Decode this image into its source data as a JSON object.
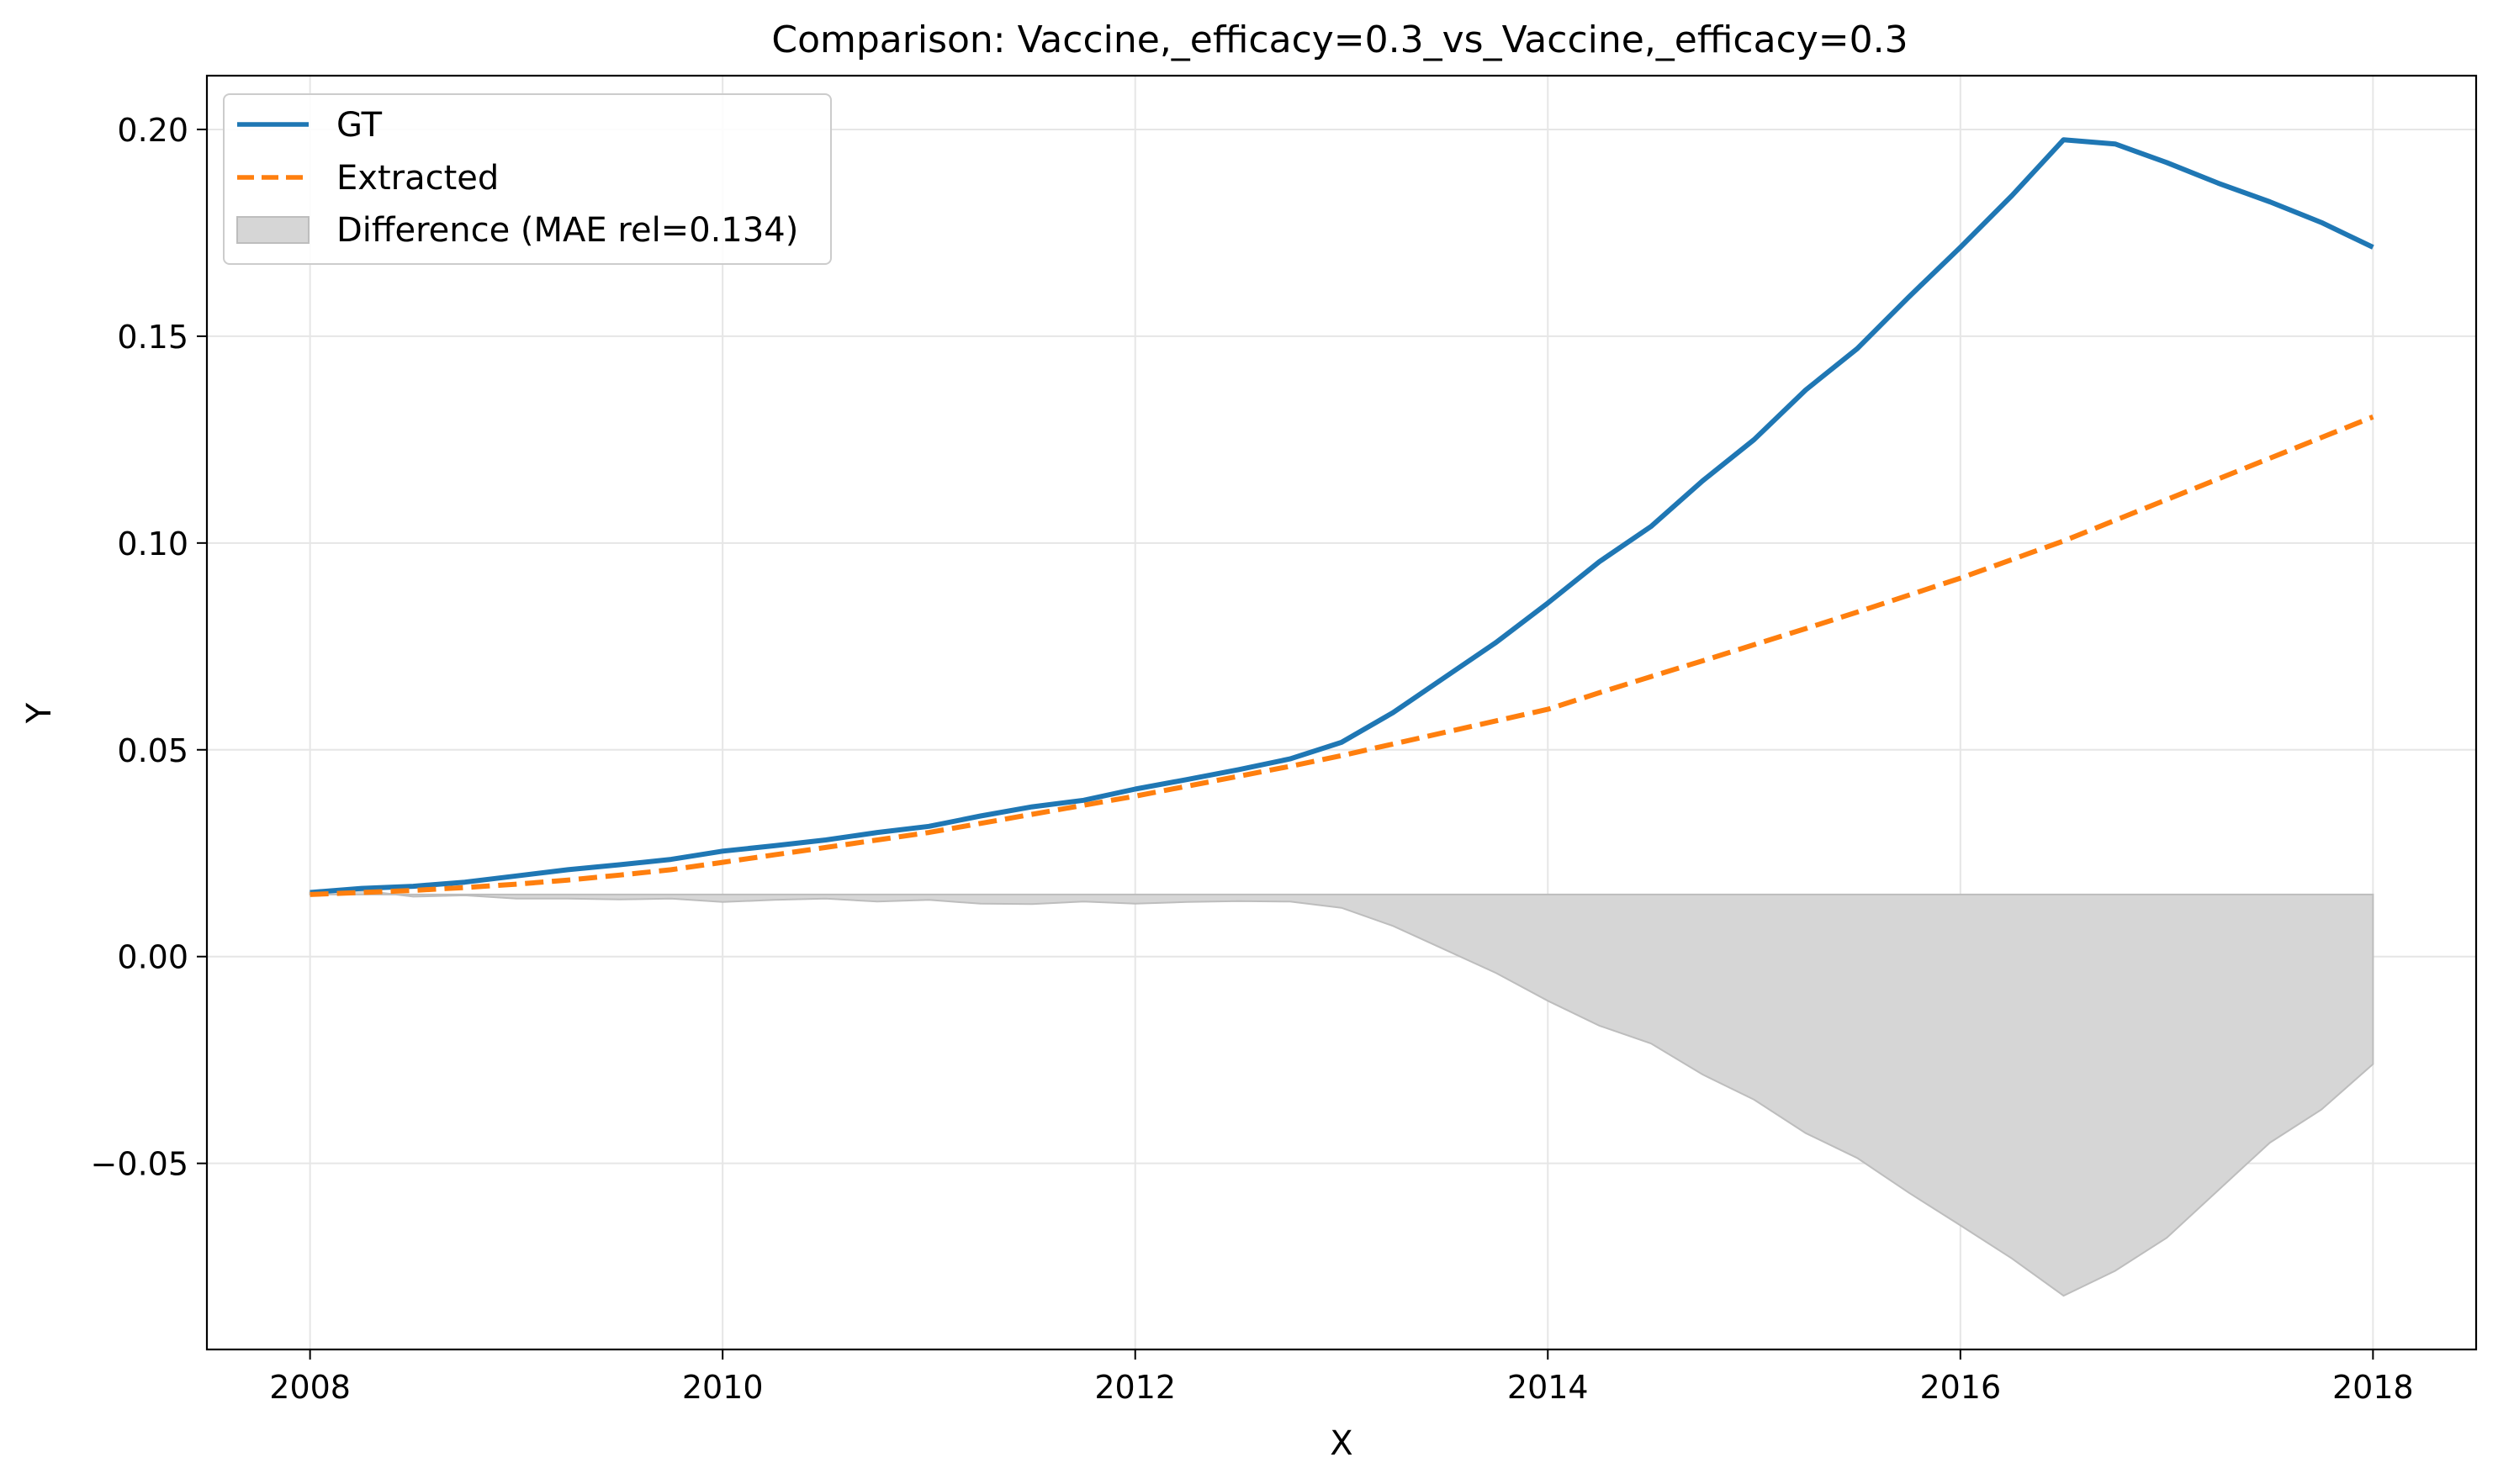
{
  "chart_data": {
    "type": "line",
    "title": "Comparison: Vaccine,_efficacy=0.3_vs_Vaccine,_efficacy=0.3",
    "xlabel": "X",
    "ylabel": "Y",
    "xlim": [
      2007.5,
      2018.5
    ],
    "ylim": [
      -0.095,
      0.213
    ],
    "xticks": [
      2008,
      2010,
      2012,
      2014,
      2016,
      2018
    ],
    "xtick_labels": [
      "2008",
      "2010",
      "2012",
      "2014",
      "2016",
      "2018"
    ],
    "yticks": [
      -0.05,
      0.0,
      0.05,
      0.1,
      0.15,
      0.2
    ],
    "ytick_labels": [
      "−0.05",
      "0.00",
      "0.05",
      "0.10",
      "0.15",
      "0.20"
    ],
    "grid": true,
    "legend_position": "top-left",
    "colors": {
      "gt": "#1f77b4",
      "extracted": "#ff7f0e",
      "difference": "#d6d6d6",
      "difference_edge": "#bdbdbd",
      "grid": "#e6e6e6"
    },
    "x": [
      2008.0,
      2008.25,
      2008.5,
      2008.75,
      2009.0,
      2009.25,
      2009.5,
      2009.75,
      2010.0,
      2010.25,
      2010.5,
      2010.75,
      2011.0,
      2011.25,
      2011.5,
      2011.75,
      2012.0,
      2012.25,
      2012.5,
      2012.75,
      2013.0,
      2013.25,
      2013.5,
      2013.75,
      2014.0,
      2014.25,
      2014.5,
      2014.75,
      2015.0,
      2015.25,
      2015.5,
      2015.75,
      2016.0,
      2016.25,
      2016.5,
      2016.75,
      2017.0,
      2017.25,
      2017.5,
      2017.75,
      2018.0
    ],
    "series": [
      {
        "name": "GT",
        "style": "solid",
        "values": [
          0.0155,
          0.0165,
          0.017,
          0.018,
          0.0195,
          0.021,
          0.0222,
          0.0235,
          0.0255,
          0.0268,
          0.0282,
          0.03,
          0.0315,
          0.034,
          0.0362,
          0.0378,
          0.0405,
          0.0428,
          0.0452,
          0.0478,
          0.0518,
          0.059,
          0.0675,
          0.076,
          0.0855,
          0.0955,
          0.104,
          0.115,
          0.125,
          0.137,
          0.147,
          0.1595,
          0.1715,
          0.184,
          0.1975,
          0.1965,
          0.192,
          0.187,
          0.1825,
          0.1775,
          0.1715
        ]
      },
      {
        "name": "Extracted",
        "style": "dashed",
        "values": [
          0.015,
          0.0155,
          0.016,
          0.0167,
          0.0175,
          0.0185,
          0.0197,
          0.021,
          0.0228,
          0.0246,
          0.0264,
          0.0282,
          0.03,
          0.0322,
          0.0344,
          0.0366,
          0.0388,
          0.0412,
          0.0436,
          0.046,
          0.0486,
          0.0514,
          0.0542,
          0.057,
          0.0598,
          0.0638,
          0.0677,
          0.0715,
          0.0754,
          0.0793,
          0.0833,
          0.0874,
          0.0915,
          0.096,
          0.1005,
          0.1055,
          0.1105,
          0.1155,
          0.1205,
          0.1255,
          0.1305
        ]
      }
    ],
    "difference": {
      "name": "Difference (MAE rel=0.134)",
      "baseline": 0.015,
      "values": [
        0.0155,
        0.016,
        0.0145,
        0.0148,
        0.014,
        0.014,
        0.0138,
        0.014,
        0.0132,
        0.0137,
        0.014,
        0.0133,
        0.0137,
        0.0128,
        0.0127,
        0.0133,
        0.0128,
        0.0132,
        0.0134,
        0.0133,
        0.0118,
        0.0074,
        0.0017,
        -0.004,
        -0.0107,
        -0.0167,
        -0.021,
        -0.0285,
        -0.0346,
        -0.0427,
        -0.0487,
        -0.0571,
        -0.065,
        -0.073,
        -0.082,
        -0.076,
        -0.068,
        -0.0565,
        -0.045,
        -0.037,
        -0.026
      ]
    }
  }
}
